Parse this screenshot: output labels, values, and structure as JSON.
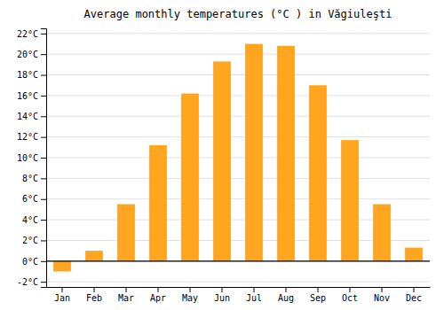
{
  "chart_data": {
    "type": "bar",
    "title": "Average monthly temperatures (°C ) in Văgiuleşti",
    "categories": [
      "Jan",
      "Feb",
      "Mar",
      "Apr",
      "May",
      "Jun",
      "Jul",
      "Aug",
      "Sep",
      "Oct",
      "Nov",
      "Dec"
    ],
    "values": [
      -1.0,
      1.0,
      5.5,
      11.2,
      16.2,
      19.3,
      21.0,
      20.8,
      17.0,
      11.7,
      5.5,
      1.3
    ],
    "color": "#FFA520",
    "ylim": [
      -2.5,
      22.5
    ],
    "yticks": [
      {
        "value": -2,
        "label": "-2°C"
      },
      {
        "value": 0,
        "label": "0°C"
      },
      {
        "value": 2,
        "label": "2°C"
      },
      {
        "value": 4,
        "label": "4°C"
      },
      {
        "value": 6,
        "label": "6°C"
      },
      {
        "value": 8,
        "label": "8°C"
      },
      {
        "value": 10,
        "label": "10°C"
      },
      {
        "value": 12,
        "label": "12°C"
      },
      {
        "value": 14,
        "label": "14°C"
      },
      {
        "value": 16,
        "label": "16°C"
      },
      {
        "value": 18,
        "label": "18°C"
      },
      {
        "value": 20,
        "label": "20°C"
      },
      {
        "value": 22,
        "label": "22°C"
      }
    ],
    "grid": true
  }
}
